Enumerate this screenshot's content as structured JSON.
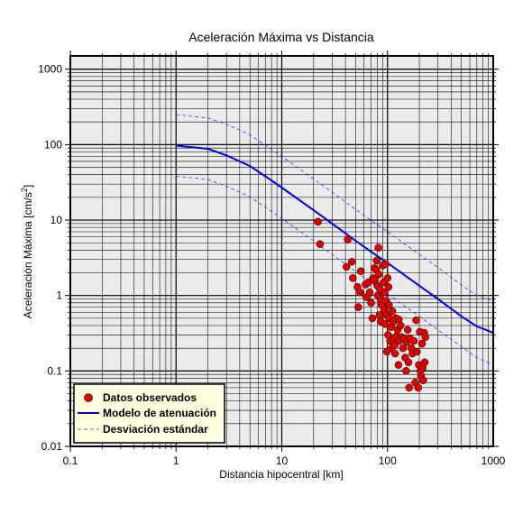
{
  "chart_data": {
    "type": "scatter",
    "title": "Aceleración Máxima vs Distancia",
    "xlabel": "Distancia hipocentral [km]",
    "ylabel_main": "Aceleración Máxima [cm/s",
    "ylabel_sup": "2",
    "ylabel_close": "]",
    "xscale": "log",
    "yscale": "log",
    "xlim": [
      0.1,
      1000
    ],
    "ylim": [
      0.01,
      1500
    ],
    "x_tick_labels": [
      "0.1",
      "1",
      "10",
      "100",
      "1000"
    ],
    "y_tick_labels": [
      "0.01",
      "0.1",
      "1",
      "10",
      "100",
      "1000"
    ],
    "grid": true,
    "legend_position": "bottom-left",
    "colors": {
      "background": "#ebebeb",
      "points": "#e00000",
      "model": "#0000e6",
      "std": "#3838f0",
      "legend_bg": "#ffffe0"
    },
    "series": [
      {
        "name": "Datos observados",
        "kind": "scatter",
        "points": [
          [
            22,
            9.5
          ],
          [
            23,
            4.8
          ],
          [
            42,
            5.5
          ],
          [
            41,
            2.4
          ],
          [
            46,
            2.8
          ],
          [
            47,
            1.7
          ],
          [
            52,
            1.3
          ],
          [
            55,
            1.1
          ],
          [
            53,
            0.7
          ],
          [
            56,
            2.1
          ],
          [
            62,
            1.4
          ],
          [
            63,
            0.95
          ],
          [
            66,
            1.5
          ],
          [
            68,
            1.1
          ],
          [
            70,
            0.8
          ],
          [
            72,
            0.5
          ],
          [
            73,
            1.7
          ],
          [
            75,
            2.3
          ],
          [
            76,
            1.6
          ],
          [
            78,
            2.2
          ],
          [
            79,
            2.9
          ],
          [
            80,
            1.35
          ],
          [
            81,
            1.0
          ],
          [
            82,
            4.3
          ],
          [
            83,
            1.9
          ],
          [
            84,
            0.55
          ],
          [
            85,
            1.2
          ],
          [
            86,
            0.9
          ],
          [
            87,
            0.45
          ],
          [
            88,
            0.75
          ],
          [
            90,
            2.5
          ],
          [
            92,
            1.5
          ],
          [
            93,
            0.65
          ],
          [
            94,
            1.1
          ],
          [
            95,
            0.42
          ],
          [
            96,
            2.6
          ],
          [
            97,
            0.85
          ],
          [
            98,
            0.55
          ],
          [
            99,
            0.18
          ],
          [
            100,
            1.7
          ],
          [
            101,
            0.3
          ],
          [
            102,
            1.3
          ],
          [
            103,
            0.75
          ],
          [
            104,
            0.5
          ],
          [
            106,
            0.25
          ],
          [
            108,
            0.38
          ],
          [
            110,
            0.2
          ],
          [
            111,
            0.62
          ],
          [
            113,
            0.45
          ],
          [
            115,
            0.27
          ],
          [
            117,
            0.22
          ],
          [
            118,
            0.17
          ],
          [
            120,
            0.5
          ],
          [
            122,
            0.29
          ],
          [
            125,
            0.35
          ],
          [
            127,
            0.12
          ],
          [
            128,
            0.48
          ],
          [
            130,
            0.25
          ],
          [
            133,
            0.4
          ],
          [
            136,
            0.28
          ],
          [
            140,
            0.2
          ],
          [
            143,
            0.27
          ],
          [
            147,
            0.15
          ],
          [
            150,
            0.1
          ],
          [
            152,
            0.24
          ],
          [
            155,
            0.35
          ],
          [
            158,
            0.13
          ],
          [
            160,
            0.06
          ],
          [
            163,
            0.27
          ],
          [
            168,
            0.2
          ],
          [
            172,
            0.17
          ],
          [
            178,
            0.25
          ],
          [
            183,
            0.07
          ],
          [
            187,
            0.47
          ],
          [
            190,
            0.18
          ],
          [
            195,
            0.06
          ],
          [
            198,
            0.12
          ],
          [
            202,
            0.33
          ],
          [
            205,
            0.1
          ],
          [
            208,
            0.085
          ],
          [
            212,
            0.23
          ],
          [
            215,
            0.11
          ],
          [
            218,
            0.075
          ],
          [
            222,
            0.32
          ],
          [
            225,
            0.13
          ],
          [
            228,
            0.28
          ]
        ]
      },
      {
        "name": "Modelo de atenuación",
        "kind": "line",
        "points": [
          [
            1,
            97
          ],
          [
            2,
            88
          ],
          [
            3,
            72
          ],
          [
            5,
            52
          ],
          [
            7,
            38
          ],
          [
            10,
            27
          ],
          [
            20,
            13.5
          ],
          [
            30,
            9.0
          ],
          [
            50,
            5.3
          ],
          [
            70,
            3.8
          ],
          [
            100,
            2.7
          ],
          [
            200,
            1.35
          ],
          [
            300,
            0.9
          ],
          [
            500,
            0.53
          ],
          [
            700,
            0.39
          ],
          [
            1000,
            0.32
          ]
        ]
      },
      {
        "name": "Desviación estándar",
        "kind": "dashed",
        "points_upper": [
          [
            1,
            250
          ],
          [
            2,
            226
          ],
          [
            3,
            186
          ],
          [
            5,
            135
          ],
          [
            7,
            98
          ],
          [
            10,
            70
          ],
          [
            20,
            35
          ],
          [
            30,
            23.5
          ],
          [
            50,
            13.8
          ],
          [
            70,
            9.9
          ],
          [
            100,
            7.0
          ],
          [
            200,
            3.5
          ],
          [
            300,
            2.35
          ],
          [
            500,
            1.38
          ],
          [
            700,
            1.0
          ],
          [
            1000,
            0.85
          ]
        ],
        "points_lower": [
          [
            1,
            38
          ],
          [
            2,
            34.5
          ],
          [
            3,
            28
          ],
          [
            5,
            20.3
          ],
          [
            7,
            14.8
          ],
          [
            10,
            10.5
          ],
          [
            20,
            5.3
          ],
          [
            30,
            3.5
          ],
          [
            50,
            2.07
          ],
          [
            70,
            1.48
          ],
          [
            100,
            1.05
          ],
          [
            200,
            0.53
          ],
          [
            300,
            0.35
          ],
          [
            500,
            0.21
          ],
          [
            700,
            0.15
          ],
          [
            1000,
            0.12
          ]
        ]
      }
    ]
  }
}
